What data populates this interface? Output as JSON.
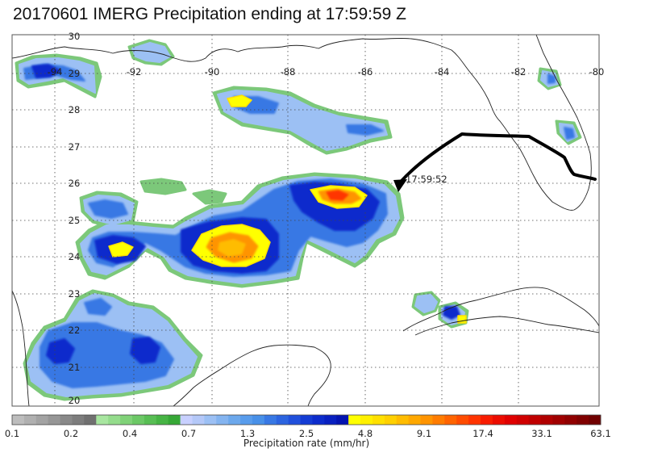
{
  "title": "20170601 IMERG Precipitation ending at 17:59:59 Z",
  "map": {
    "lon_range": [
      -95,
      -80
    ],
    "lat_range": [
      20,
      30
    ],
    "lon_labels": [
      "-94",
      "-92",
      "-90",
      "-88",
      "-86",
      "-84",
      "-82",
      "-80"
    ],
    "lat_labels": [
      "30",
      "29",
      "28",
      "27",
      "26",
      "25",
      "24",
      "23",
      "22",
      "21",
      "20"
    ],
    "grid": "dotted",
    "track_label": "17:59:52",
    "track_color": "#000000"
  },
  "colorbar": {
    "title": "Precipitation rate (mm/hr)",
    "tick_labels": [
      "0.1",
      "0.2",
      "0.4",
      "0.7",
      "1.3",
      "2.5",
      "4.8",
      "9.1",
      "17.4",
      "33.1",
      "63.1"
    ],
    "colors": [
      "#bdbdbd",
      "#b0b0b0",
      "#a3a3a3",
      "#969696",
      "#898989",
      "#7d7d7d",
      "#707070",
      "#a8e6a0",
      "#94dc8c",
      "#80d278",
      "#6cc866",
      "#58be54",
      "#46b444",
      "#36a836",
      "#c8d0ff",
      "#b4c8f8",
      "#9cc0f4",
      "#84b4f0",
      "#6ca8ec",
      "#589cec",
      "#4890e8",
      "#3878e4",
      "#2c64e0",
      "#2050dc",
      "#143cd4",
      "#0c2ccc",
      "#0820c0",
      "#0414b0",
      "#ffff00",
      "#fff000",
      "#ffe000",
      "#ffd000",
      "#ffbc00",
      "#ffa800",
      "#ff9400",
      "#ff7c00",
      "#ff6400",
      "#ff4c00",
      "#ff3400",
      "#f81c00",
      "#ec0c00",
      "#e00000",
      "#d00000",
      "#c00000",
      "#b00000",
      "#a00000",
      "#900000",
      "#800000",
      "#700000"
    ]
  }
}
